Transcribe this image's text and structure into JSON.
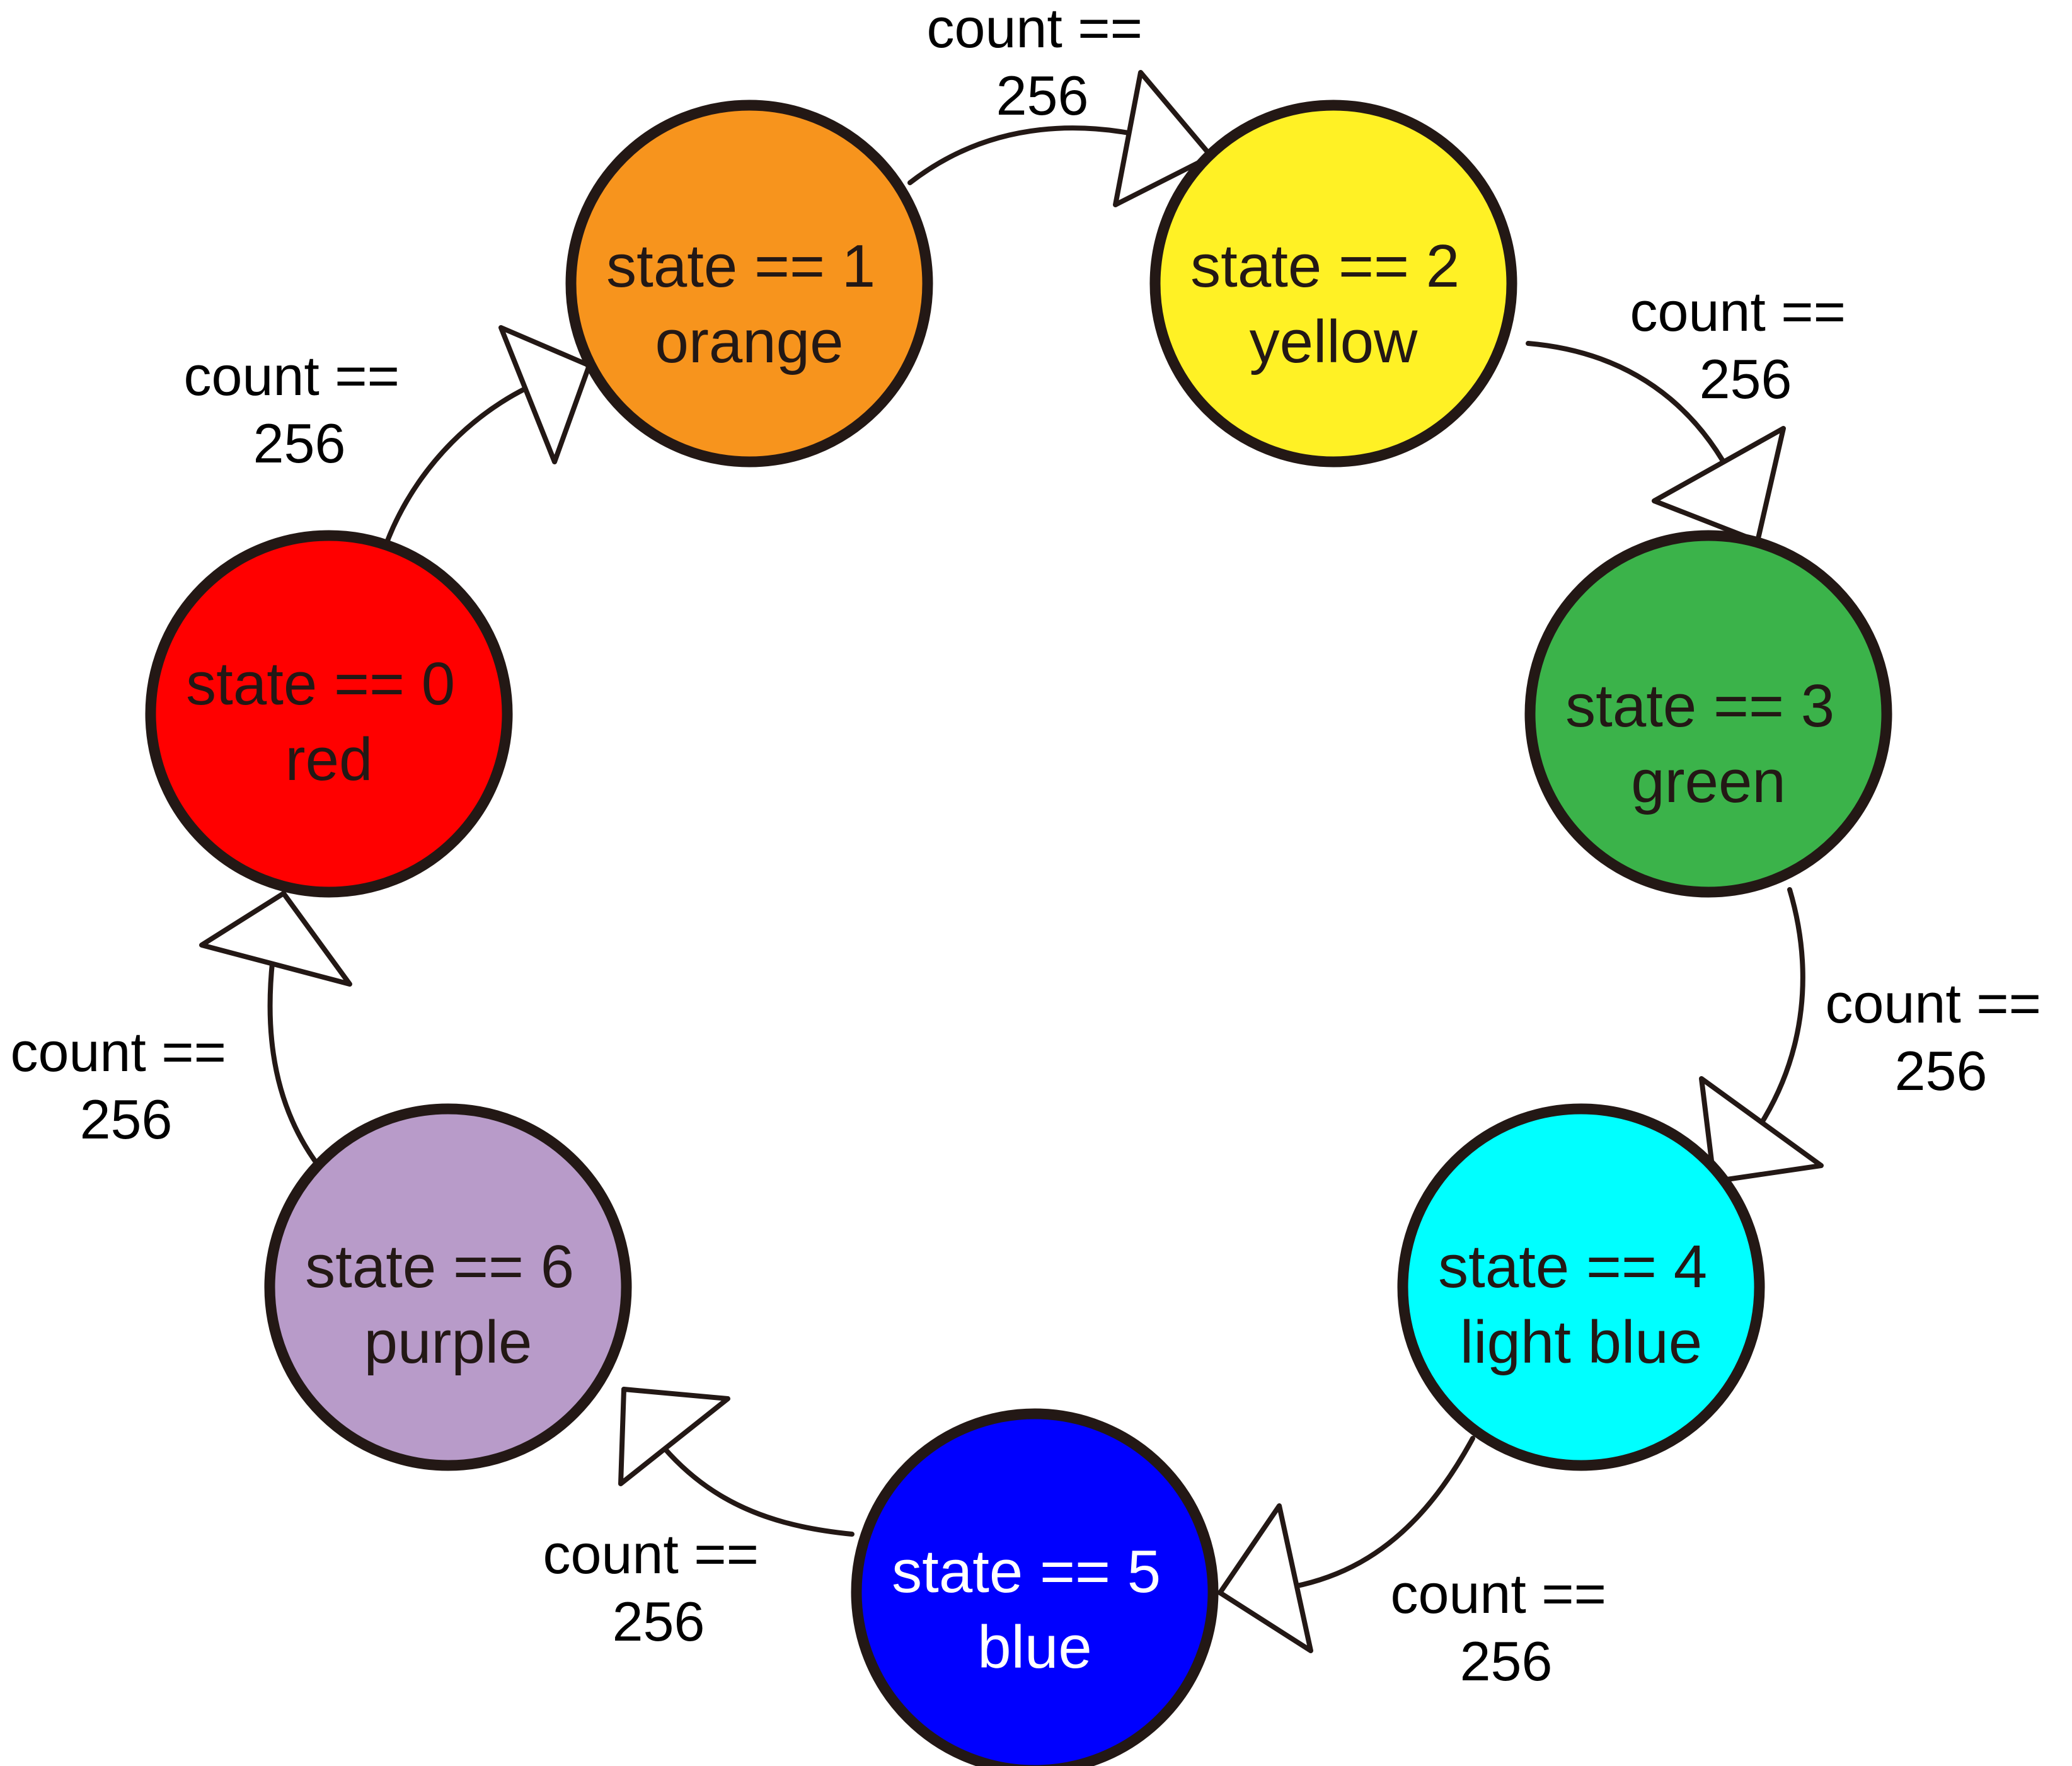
{
  "states": [
    {
      "id": "s0",
      "condition": "state == 0",
      "color_name": "red",
      "fill": "#ff0000",
      "text_color": "#231815"
    },
    {
      "id": "s1",
      "condition": "state == 1",
      "color_name": "orange",
      "fill": "#f7941d",
      "text_color": "#231815"
    },
    {
      "id": "s2",
      "condition": "state == 2",
      "color_name": "yellow",
      "fill": "#fff125",
      "text_color": "#231815"
    },
    {
      "id": "s3",
      "condition": "state == 3",
      "color_name": "green",
      "fill": "#3bb34a",
      "text_color": "#231815"
    },
    {
      "id": "s4",
      "condition": "state == 4",
      "color_name": "light blue",
      "fill": "#00ffff",
      "text_color": "#231815"
    },
    {
      "id": "s5",
      "condition": "state == 5",
      "color_name": "blue",
      "fill": "#0000ff",
      "text_color": "#ffffff"
    },
    {
      "id": "s6",
      "condition": "state == 6",
      "color_name": "purple",
      "fill": "#b89bc9",
      "text_color": "#231815"
    }
  ],
  "transitions": [
    {
      "from": "s0",
      "to": "s1",
      "label_line1": "count ==",
      "label_line2": "256"
    },
    {
      "from": "s1",
      "to": "s2",
      "label_line1": "count ==",
      "label_line2": "256"
    },
    {
      "from": "s2",
      "to": "s3",
      "label_line1": "count ==",
      "label_line2": "256"
    },
    {
      "from": "s3",
      "to": "s4",
      "label_line1": "count ==",
      "label_line2": "256"
    },
    {
      "from": "s4",
      "to": "s5",
      "label_line1": "count ==",
      "label_line2": "256"
    },
    {
      "from": "s5",
      "to": "s6",
      "label_line1": "count ==",
      "label_line2": "256"
    },
    {
      "from": "s6",
      "to": "s0",
      "label_line1": "count ==",
      "label_line2": "256"
    }
  ]
}
